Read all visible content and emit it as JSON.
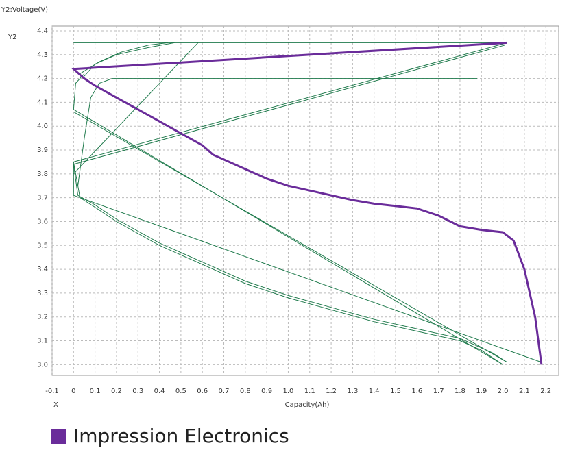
{
  "chart_data": {
    "type": "line",
    "y_title": "Y2:Voltage(V)",
    "y_axis_name": "Y2",
    "x_axis_name": "X",
    "x_label": "Capacity(Ah)",
    "xlim": [
      -0.1,
      2.26
    ],
    "ylim": [
      2.955,
      4.42
    ],
    "xticks": [
      -0.1,
      0,
      0.1,
      0.2,
      0.3,
      0.4,
      0.5,
      0.6,
      0.7,
      0.8,
      0.9,
      {
        "value": 1,
        "label": "1.0"
      },
      1.1,
      1.2,
      1.3,
      1.4,
      1.5,
      1.6,
      1.7,
      1.8,
      1.9,
      {
        "value": 2,
        "label": "2.0"
      },
      2.1,
      2.2
    ],
    "yticks": [
      {
        "value": 3,
        "label": "3.0"
      },
      3.1,
      3.2,
      3.3,
      3.4,
      3.5,
      3.6,
      3.7,
      3.8,
      3.9,
      {
        "value": 4,
        "label": "4.0"
      },
      4.1,
      4.2,
      4.3,
      4.4
    ],
    "grid": true,
    "series": [
      {
        "color": "#1f7a4c",
        "x": [
          0,
          0.03,
          0.1,
          0.2,
          0.4,
          0.6,
          0.8,
          1.0,
          1.2,
          1.4,
          1.6,
          1.8,
          1.9,
          2.0
        ],
        "values": [
          3.85,
          3.7,
          3.66,
          3.6,
          3.5,
          3.42,
          3.34,
          3.28,
          3.23,
          3.18,
          3.14,
          3.1,
          3.06,
          3.0
        ]
      },
      {
        "color": "#1f7a4c",
        "x": [
          0,
          0.02,
          0.1,
          0.2,
          0.4,
          0.6,
          0.8,
          1.0,
          1.2,
          1.4,
          1.6,
          1.8,
          1.95,
          2.02
        ],
        "values": [
          3.84,
          3.71,
          3.67,
          3.61,
          3.51,
          3.43,
          3.35,
          3.29,
          3.24,
          3.19,
          3.15,
          3.11,
          3.05,
          3.01
        ]
      },
      {
        "color": "#1f7a4c",
        "x": [
          0,
          0,
          2.18
        ],
        "values": [
          3.84,
          3.71,
          3.01
        ]
      },
      {
        "color": "#1f7a4c",
        "x": [
          0,
          2.02,
          0
        ],
        "values": [
          3.85,
          4.35,
          4.35
        ]
      },
      {
        "color": "#1f7a4c",
        "x": [
          0,
          2.01
        ],
        "values": [
          3.84,
          4.34
        ]
      },
      {
        "color": "#1f7a4c",
        "x": [
          0,
          2.0
        ],
        "values": [
          4.07,
          3.0
        ]
      },
      {
        "color": "#1f7a4c",
        "x": [
          0,
          2.02
        ],
        "values": [
          4.06,
          3.01
        ]
      },
      {
        "color": "#1f7a4c",
        "x": [
          0.05,
          0.1,
          0.2,
          0.35,
          0.47
        ],
        "values": [
          4.21,
          4.26,
          4.3,
          4.33,
          4.35
        ]
      },
      {
        "color": "#1f7a4c",
        "x": [
          0.03,
          0.12,
          0.22,
          0.35,
          0.44
        ],
        "values": [
          4.22,
          4.27,
          4.31,
          4.34,
          4.35
        ]
      },
      {
        "color": "#1f7a4c",
        "x": [
          0.02,
          0.05,
          0.08,
          0.12,
          0.18,
          1.88
        ],
        "values": [
          3.75,
          3.95,
          4.12,
          4.18,
          4.2,
          4.2
        ]
      },
      {
        "color": "#1f7a4c",
        "x": [
          0,
          0.58
        ],
        "values": [
          3.8,
          4.35
        ]
      },
      {
        "color": "#1f7a4c",
        "x": [
          0,
          0.01,
          0.05
        ],
        "values": [
          4.07,
          4.18,
          4.22
        ]
      },
      {
        "name": "Impression Electronics",
        "color": "#6a2c9a",
        "x": [
          2.02,
          0,
          0.05,
          0.1,
          0.2,
          0.3,
          0.4,
          0.5,
          0.6,
          0.65,
          0.7,
          0.8,
          0.9,
          1.0,
          1.1,
          1.2,
          1.3,
          1.4,
          1.5,
          1.6,
          1.7,
          1.8,
          1.9,
          2.0,
          2.05,
          2.1,
          2.15,
          2.18
        ],
        "values": [
          4.35,
          4.24,
          4.2,
          4.17,
          4.12,
          4.07,
          4.02,
          3.97,
          3.92,
          3.88,
          3.86,
          3.82,
          3.78,
          3.75,
          3.73,
          3.71,
          3.69,
          3.675,
          3.665,
          3.655,
          3.625,
          3.58,
          3.565,
          3.555,
          3.52,
          3.4,
          3.2,
          3.0
        ]
      }
    ]
  }
}
